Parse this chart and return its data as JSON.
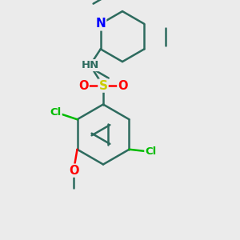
{
  "background_color": "#ebebeb",
  "bond_color": "#2d6b5e",
  "bond_width": 1.8,
  "atom_colors": {
    "N_pyridine": "#0000ff",
    "N_amine": "#2d6b5e",
    "H": "#888888",
    "S": "#cccc00",
    "O": "#ff0000",
    "Cl": "#00bb00",
    "C": "#2d6b5e"
  }
}
